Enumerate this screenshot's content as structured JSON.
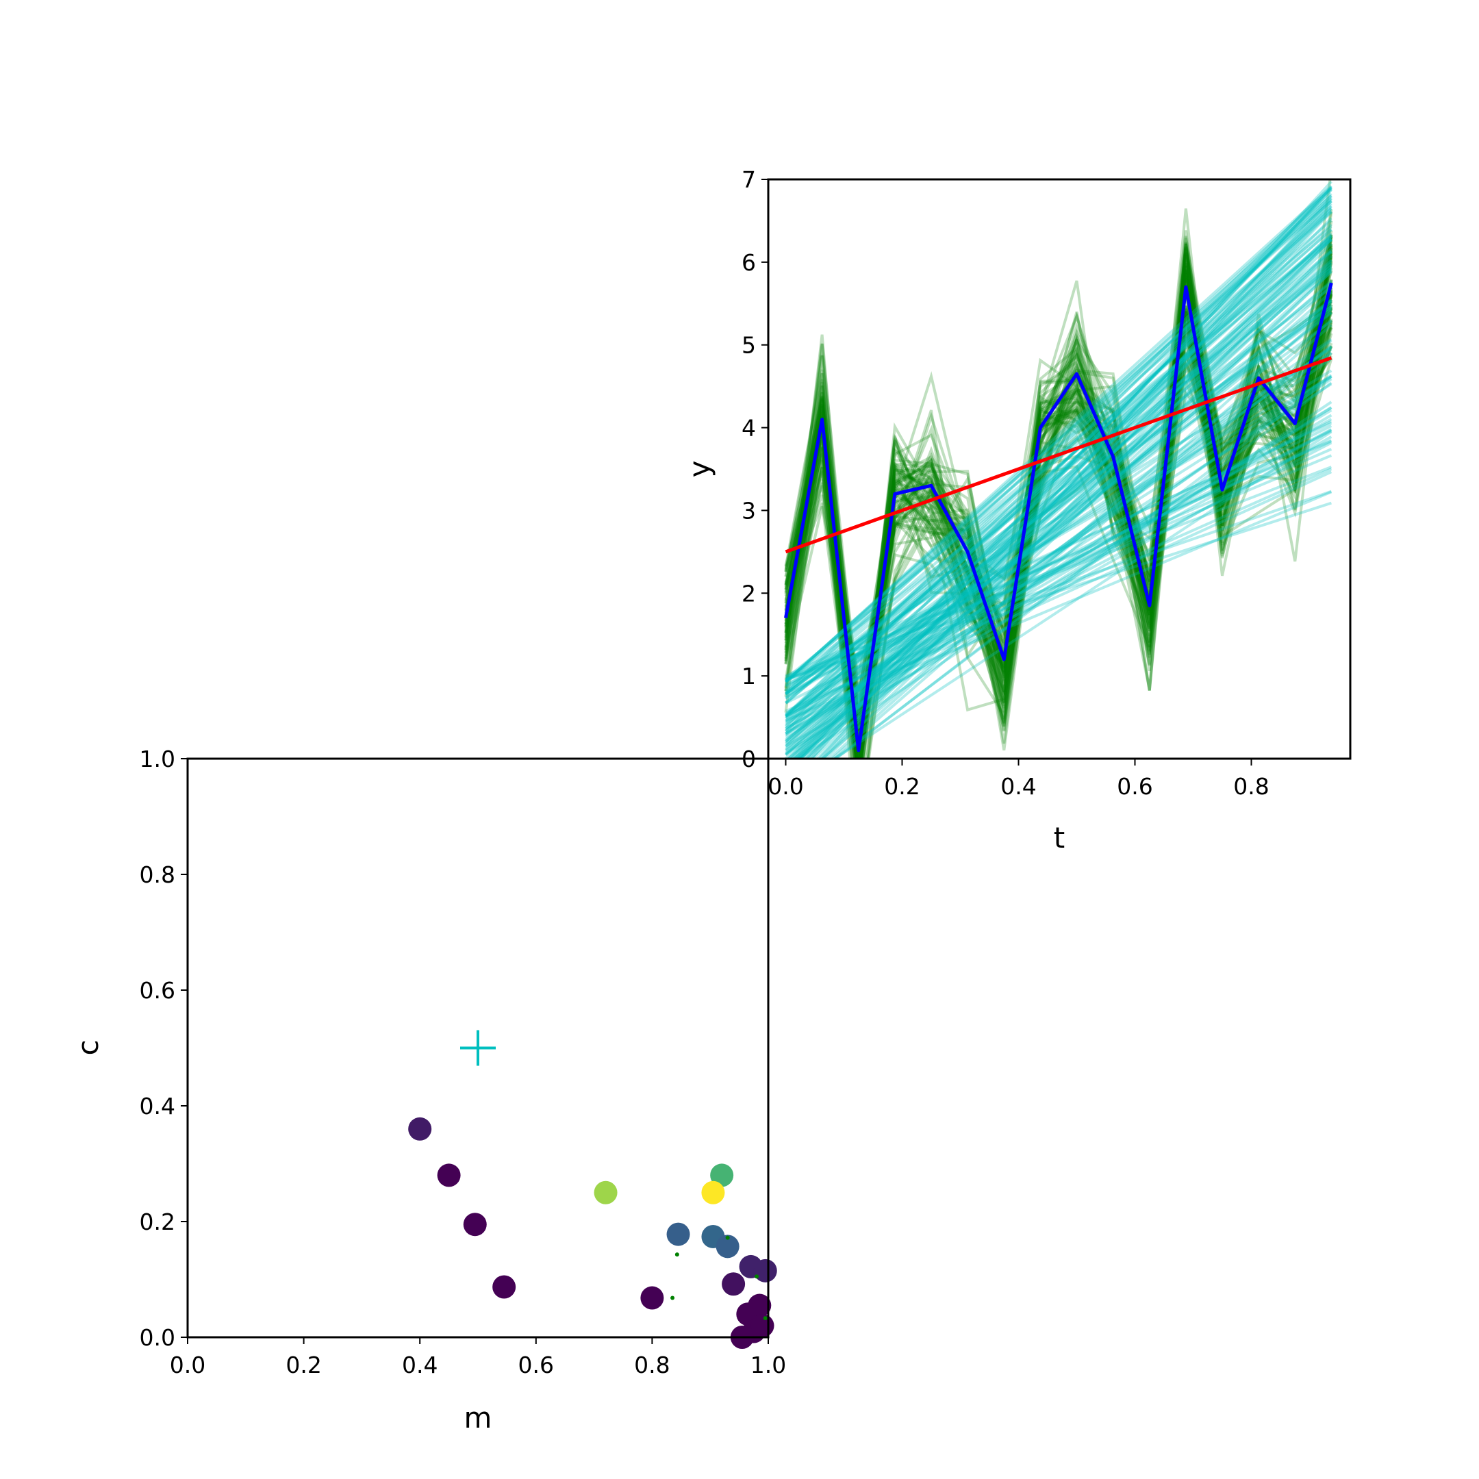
{
  "chart_data": [
    {
      "type": "line",
      "xlabel": "t",
      "ylabel": "y",
      "xlim": [
        -0.03,
        0.97
      ],
      "ylim": [
        0,
        7
      ],
      "xticks": [
        "0.0",
        "0.2",
        "0.4",
        "0.6",
        "0.8"
      ],
      "yticks": [
        "0",
        "1",
        "2",
        "3",
        "4",
        "5",
        "6",
        "7"
      ],
      "t": [
        0.0,
        0.0625,
        0.125,
        0.1875,
        0.25,
        0.3125,
        0.375,
        0.4375,
        0.5,
        0.5625,
        0.625,
        0.6875,
        0.75,
        0.8125,
        0.875,
        0.9375
      ],
      "series": [
        {
          "role": "observed data",
          "color": "#0000ff",
          "values": [
            1.7,
            4.1,
            0.1,
            3.2,
            3.3,
            2.5,
            1.2,
            4.0,
            4.65,
            3.65,
            1.85,
            5.7,
            3.25,
            4.6,
            4.05,
            5.75
          ]
        },
        {
          "role": "true line",
          "color": "#ff0000",
          "intercept": 2.5,
          "slope": 2.5,
          "x_range": [
            0.0,
            0.9375
          ]
        },
        {
          "role": "posterior predictive samples",
          "color": "#008000",
          "alpha": 0.25,
          "base": [
            1.7,
            4.1,
            0.1,
            3.2,
            3.3,
            2.5,
            1.2,
            4.0,
            4.65,
            3.65,
            1.85,
            5.7,
            3.25,
            4.6,
            4.05,
            5.75
          ],
          "count": 80
        },
        {
          "role": "posterior line samples",
          "color": "#00bfbf",
          "alpha": 0.3,
          "intercept_range": [
            -0.5,
            1.0
          ],
          "end_value_range": [
            3.0,
            7.0
          ],
          "count": 120
        }
      ]
    },
    {
      "type": "scatter",
      "xlabel": "m",
      "ylabel": "c",
      "xlim": [
        0,
        1
      ],
      "ylim": [
        0,
        1
      ],
      "xticks": [
        "0.0",
        "0.2",
        "0.4",
        "0.6",
        "0.8",
        "1.0"
      ],
      "yticks": [
        "0.0",
        "0.2",
        "0.4",
        "0.6",
        "0.8",
        "1.0"
      ],
      "colormap": [
        "#440154",
        "#3b528b",
        "#21918c",
        "#5ec962",
        "#fde725"
      ],
      "true_value": {
        "m": 0.5,
        "c": 0.5,
        "color": "#00bfbf",
        "marker": "+"
      },
      "points": [
        {
          "m": 0.4,
          "c": 0.36,
          "w": 0.08
        },
        {
          "m": 0.45,
          "c": 0.28,
          "w": 0.0
        },
        {
          "m": 0.495,
          "c": 0.195,
          "w": 0.0
        },
        {
          "m": 0.545,
          "c": 0.087,
          "w": 0.0
        },
        {
          "m": 0.72,
          "c": 0.25,
          "w": 0.85
        },
        {
          "m": 0.8,
          "c": 0.068,
          "w": 0.0
        },
        {
          "m": 0.845,
          "c": 0.178,
          "w": 0.3
        },
        {
          "m": 0.905,
          "c": 0.174,
          "w": 0.33
        },
        {
          "m": 0.93,
          "c": 0.157,
          "w": 0.3
        },
        {
          "m": 0.92,
          "c": 0.28,
          "w": 0.65
        },
        {
          "m": 0.905,
          "c": 0.25,
          "w": 1.0
        },
        {
          "m": 0.94,
          "c": 0.092,
          "w": 0.05
        },
        {
          "m": 0.97,
          "c": 0.122,
          "w": 0.1
        },
        {
          "m": 0.965,
          "c": 0.04,
          "w": 0.0
        },
        {
          "m": 0.985,
          "c": 0.055,
          "w": 0.0
        },
        {
          "m": 0.975,
          "c": 0.01,
          "w": 0.0
        },
        {
          "m": 0.99,
          "c": 0.02,
          "w": 0.0
        },
        {
          "m": 0.995,
          "c": 0.115,
          "w": 0.1
        },
        {
          "m": 0.955,
          "c": 0.0,
          "w": 0.0
        }
      ],
      "samples": [
        {
          "m": 0.843,
          "c": 0.143
        },
        {
          "m": 0.835,
          "c": 0.068
        },
        {
          "m": 0.98,
          "c": 0.105
        },
        {
          "m": 0.995,
          "c": 0.033
        },
        {
          "m": 0.93,
          "c": 0.172
        }
      ],
      "sample_color": "#008000"
    }
  ]
}
